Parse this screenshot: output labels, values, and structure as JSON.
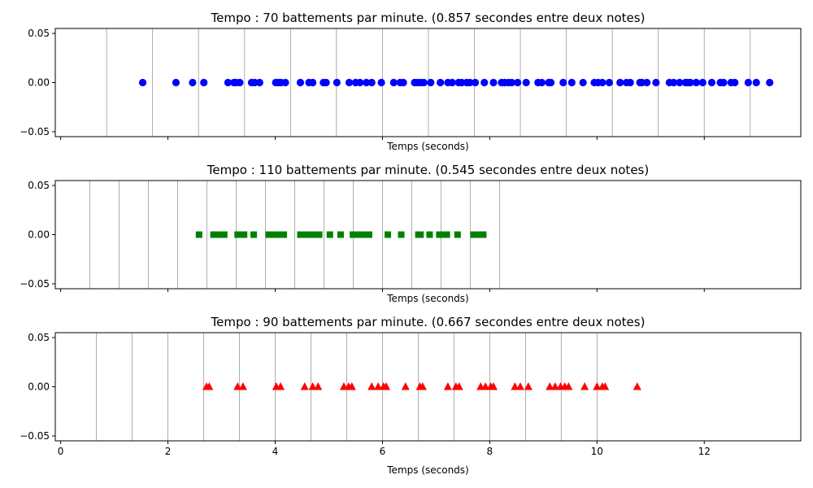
{
  "chart_data": [
    {
      "type": "scatter",
      "title": "Tempo : 70 battements par minute. (0.857 secondes entre deux notes)",
      "xlabel": "Temps (seconds)",
      "ylabel": "",
      "xlim": [
        -0.1,
        13.8
      ],
      "ylim": [
        -0.055,
        0.055
      ],
      "yticks": [
        "0.05",
        "0.00",
        "−0.05"
      ],
      "ytick_values": [
        0.05,
        0.0,
        -0.05
      ],
      "xticks": [],
      "xtick_values": [
        0,
        2,
        4,
        6,
        8,
        10,
        12
      ],
      "beat_lines": [
        0.857,
        1.714,
        2.571,
        3.429,
        4.286,
        5.143,
        6.0,
        6.857,
        7.714,
        8.571,
        9.429,
        10.286,
        11.143,
        12.0,
        12.857
      ],
      "marker": "circle",
      "color": "#0000ff",
      "grid_color": "#999999",
      "series": [
        {
          "x": [
            1.53,
            2.15,
            2.46,
            2.67,
            3.12,
            3.23,
            3.27,
            3.34,
            3.56,
            3.62,
            3.71,
            4.01,
            4.06,
            4.11,
            4.19,
            4.47,
            4.63,
            4.7,
            4.9,
            4.95,
            5.15,
            5.38,
            5.5,
            5.58,
            5.7,
            5.8,
            5.98,
            6.21,
            6.33,
            6.39,
            6.6,
            6.65,
            6.71,
            6.77,
            6.9,
            7.08,
            7.22,
            7.3,
            7.42,
            7.48,
            7.57,
            7.63,
            7.73,
            7.9,
            8.07,
            8.22,
            8.28,
            8.35,
            8.41,
            8.52,
            8.68,
            8.9,
            8.97,
            9.1,
            9.14,
            9.37,
            9.53,
            9.74,
            9.95,
            10.02,
            10.1,
            10.23,
            10.43,
            10.55,
            10.62,
            10.8,
            10.84,
            10.93,
            11.1,
            11.35,
            11.43,
            11.54,
            11.65,
            11.69,
            11.74,
            11.85,
            11.97,
            12.14,
            12.3,
            12.36,
            12.5,
            12.57,
            12.82,
            12.97,
            13.22
          ],
          "y": [
            0,
            0,
            0,
            0,
            0,
            0,
            0,
            0,
            0,
            0,
            0,
            0,
            0,
            0,
            0,
            0,
            0,
            0,
            0,
            0,
            0,
            0,
            0,
            0,
            0,
            0,
            0,
            0,
            0,
            0,
            0,
            0,
            0,
            0,
            0,
            0,
            0,
            0,
            0,
            0,
            0,
            0,
            0,
            0,
            0,
            0,
            0,
            0,
            0,
            0,
            0,
            0,
            0,
            0,
            0,
            0,
            0,
            0,
            0,
            0,
            0,
            0,
            0,
            0,
            0,
            0,
            0,
            0,
            0,
            0,
            0,
            0,
            0,
            0,
            0,
            0,
            0,
            0,
            0,
            0,
            0,
            0,
            0,
            0,
            0
          ]
        }
      ]
    },
    {
      "type": "scatter",
      "title": "Tempo : 110 battements par minute. (0.545 secondes entre deux notes)",
      "xlabel": "Temps (seconds)",
      "ylabel": "",
      "xlim": [
        -0.1,
        13.8
      ],
      "ylim": [
        -0.055,
        0.055
      ],
      "yticks": [
        "0.05",
        "0.00",
        "−0.05"
      ],
      "ytick_values": [
        0.05,
        0.0,
        -0.05
      ],
      "xticks": [],
      "xtick_values": [
        0,
        2,
        4,
        6,
        8,
        10,
        12
      ],
      "beat_lines": [
        0.545,
        1.091,
        1.636,
        2.182,
        2.727,
        3.273,
        3.818,
        4.364,
        4.909,
        5.455,
        6.0,
        6.545,
        7.091,
        7.636,
        8.182
      ],
      "marker": "square",
      "color": "#008000",
      "grid_color": "#999999",
      "series": [
        {
          "x": [
            2.58,
            2.85,
            2.9,
            2.97,
            3.05,
            3.3,
            3.37,
            3.42,
            3.6,
            3.88,
            3.94,
            4.01,
            4.07,
            4.16,
            4.47,
            4.52,
            4.6,
            4.67,
            4.72,
            4.82,
            5.02,
            5.22,
            5.45,
            5.52,
            5.6,
            5.67,
            5.75,
            6.1,
            6.35,
            6.67,
            6.71,
            6.88,
            7.06,
            7.15,
            7.2,
            7.4,
            7.7,
            7.8,
            7.88
          ],
          "y": [
            0,
            0,
            0,
            0,
            0,
            0,
            0,
            0,
            0,
            0,
            0,
            0,
            0,
            0,
            0,
            0,
            0,
            0,
            0,
            0,
            0,
            0,
            0,
            0,
            0,
            0,
            0,
            0,
            0,
            0,
            0,
            0,
            0,
            0,
            0,
            0,
            0,
            0,
            0
          ]
        }
      ]
    },
    {
      "type": "scatter",
      "title": "Tempo : 90 battements par minute. (0.667 secondes entre deux notes)",
      "xlabel": "Temps (seconds)",
      "ylabel": "",
      "xlim": [
        -0.1,
        13.8
      ],
      "ylim": [
        -0.055,
        0.055
      ],
      "yticks": [
        "0.05",
        "0.00",
        "−0.05"
      ],
      "ytick_values": [
        0.05,
        0.0,
        -0.05
      ],
      "xticks": [
        "0",
        "2",
        "4",
        "6",
        "8",
        "10",
        "12"
      ],
      "xtick_values": [
        0,
        2,
        4,
        6,
        8,
        10,
        12
      ],
      "beat_lines": [
        0.667,
        1.333,
        2.0,
        2.667,
        3.333,
        4.0,
        4.667,
        5.333,
        6.0,
        6.667,
        7.333,
        8.0,
        8.667,
        9.333,
        10.0
      ],
      "marker": "triangle",
      "color": "#ff0000",
      "grid_color": "#999999",
      "series": [
        {
          "x": [
            2.72,
            2.77,
            3.3,
            3.4,
            4.02,
            4.1,
            4.55,
            4.7,
            4.8,
            5.28,
            5.37,
            5.43,
            5.8,
            5.92,
            6.02,
            6.07,
            6.43,
            6.7,
            6.75,
            7.22,
            7.37,
            7.43,
            7.83,
            7.92,
            8.02,
            8.07,
            8.47,
            8.57,
            8.72,
            9.12,
            9.22,
            9.32,
            9.4,
            9.47,
            9.77,
            10.0,
            10.1,
            10.15,
            10.75
          ],
          "y": [
            0,
            0,
            0,
            0,
            0,
            0,
            0,
            0,
            0,
            0,
            0,
            0,
            0,
            0,
            0,
            0,
            0,
            0,
            0,
            0,
            0,
            0,
            0,
            0,
            0,
            0,
            0,
            0,
            0,
            0,
            0,
            0,
            0,
            0,
            0,
            0,
            0,
            0,
            0
          ]
        }
      ]
    }
  ]
}
